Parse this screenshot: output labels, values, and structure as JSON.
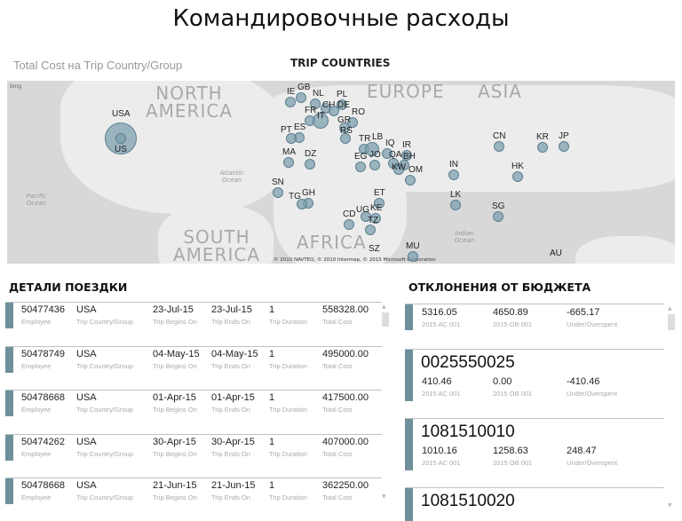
{
  "page_title": "Командировочные расходы",
  "map_section": {
    "subtitle": "Total Cost на Trip Country/Group",
    "title": "TRIP COUNTRIES",
    "provider": "bing",
    "copyright": "© 2010 NAVTEQ, © 2010 Intermap, © 2015 Microsoft Corporation",
    "continents": [
      "NORTH AMERICA",
      "EUROPE",
      "ASIA",
      "AFRICA",
      "SOUTH AMERICA"
    ],
    "oceans": [
      "Pacific Ocean",
      "Atlantic Ocean",
      "Indian Ocean"
    ],
    "bubble_color": "#7ea0b0",
    "countries": [
      "USA",
      "US",
      "IE",
      "GB",
      "NL",
      "PL",
      "CH",
      "DE",
      "RO",
      "ES",
      "FR",
      "IT",
      "GR",
      "PT",
      "RS",
      "TR",
      "LB",
      "IQ",
      "IR",
      "EG",
      "QA",
      "BH",
      "JO",
      "KW",
      "OM",
      "MA",
      "DZ",
      "SN",
      "GH",
      "TG",
      "ET",
      "KE",
      "UG",
      "TZ",
      "CD",
      "MU",
      "SZ",
      "IN",
      "LK",
      "CN",
      "HK",
      "SG",
      "KR",
      "JP",
      "AU"
    ]
  },
  "trip_details": {
    "title": "ДЕТАЛИ ПОЕЗДКИ",
    "labels": {
      "employee": "Employee",
      "country": "Trip Country/Group",
      "begins": "Trip Begins On",
      "ends": "Trip Ends On",
      "duration": "Trip Duration",
      "cost": "Total Cost"
    },
    "rows": [
      {
        "employee": "50477436",
        "country": "USA",
        "begins": "23-Jul-15",
        "ends": "23-Jul-15",
        "duration": "1",
        "cost": "558328.00"
      },
      {
        "employee": "50478749",
        "country": "USA",
        "begins": "04-May-15",
        "ends": "04-May-15",
        "duration": "1",
        "cost": "495000.00"
      },
      {
        "employee": "50478668",
        "country": "USA",
        "begins": "01-Apr-15",
        "ends": "01-Apr-15",
        "duration": "1",
        "cost": "417500.00"
      },
      {
        "employee": "50474262",
        "country": "USA",
        "begins": "30-Apr-15",
        "ends": "30-Apr-15",
        "duration": "1",
        "cost": "407000.00"
      },
      {
        "employee": "50478668",
        "country": "USA",
        "begins": "21-Jun-15",
        "ends": "21-Jun-15",
        "duration": "1",
        "cost": "362250.00"
      }
    ]
  },
  "budget": {
    "title": "ОТКЛОНЕНИЯ ОТ БЮДЖЕТА",
    "labels": {
      "ac": "2015 AC 001",
      "ob": "2015 OB 001",
      "diff": "Under/Overspent"
    },
    "rows": [
      {
        "id": "",
        "ac": "5316.05",
        "ob": "4650.89",
        "diff": "-665.17"
      },
      {
        "id": "0025550025",
        "ac": "410.46",
        "ob": "0.00",
        "diff": "-410.46"
      },
      {
        "id": "1081510010",
        "ac": "1010.16",
        "ob": "1258.63",
        "diff": "248.47"
      },
      {
        "id": "1081510020"
      }
    ]
  },
  "accent_color": "#6f8f9b"
}
